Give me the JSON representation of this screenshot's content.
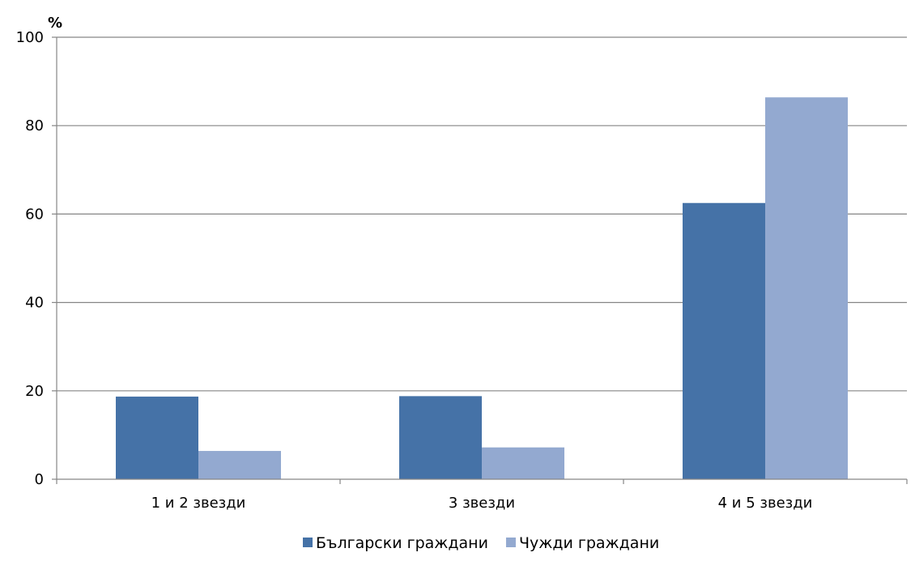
{
  "chart_data": {
    "type": "bar",
    "y_unit": "%",
    "categories": [
      "1 и 2 звезди",
      "3 звезди",
      "4 и 5 звезди"
    ],
    "series": [
      {
        "name": "Български граждани",
        "color": "#4572A7",
        "values": [
          18.7,
          18.8,
          62.5
        ]
      },
      {
        "name": "Чужди граждани",
        "color": "#93A9D0",
        "values": [
          6.4,
          7.2,
          86.4
        ]
      }
    ],
    "ylim": [
      0,
      100
    ],
    "yticks": [
      "0",
      "20",
      "40",
      "60",
      "80",
      "100"
    ],
    "grid": true,
    "legend": "bottom"
  }
}
